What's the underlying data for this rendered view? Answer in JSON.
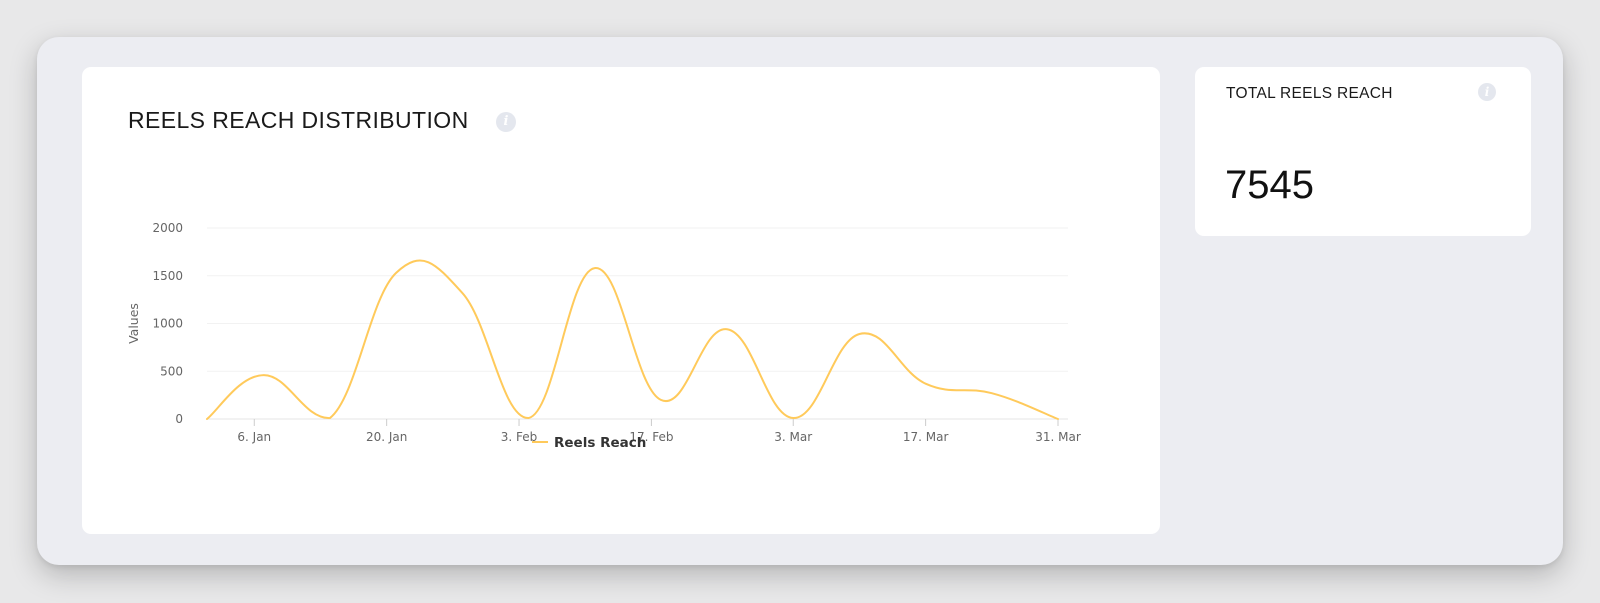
{
  "chart_card": {
    "title": "REELS REACH DISTRIBUTION",
    "info_icon": "info-icon"
  },
  "total_card": {
    "label": "TOTAL REELS REACH",
    "value": "7545",
    "info_icon": "info-icon"
  },
  "chart_data": {
    "type": "line",
    "title": "REELS REACH DISTRIBUTION",
    "xlabel": "",
    "ylabel": "Values",
    "ylim": [
      0,
      2000
    ],
    "yticks": [
      0,
      500,
      1000,
      1500,
      2000
    ],
    "xticks": [
      "6. Jan",
      "20. Jan",
      "3. Feb",
      "17. Feb",
      "3. Mar",
      "17. Mar",
      "31. Mar"
    ],
    "xlim": [
      "2024-01-01",
      "2024-03-31"
    ],
    "grid": true,
    "legend_position": "bottom",
    "line_color": "#ffca5b",
    "series": [
      {
        "name": "Reels Reach",
        "x": [
          "2024-01-01",
          "2024-01-07",
          "2024-01-14",
          "2024-01-21",
          "2024-01-28",
          "2024-02-04",
          "2024-02-11",
          "2024-02-18",
          "2024-02-25",
          "2024-03-03",
          "2024-03-10",
          "2024-03-17",
          "2024-03-24",
          "2024-03-31"
        ],
        "values": [
          0,
          460,
          10,
          1530,
          1320,
          10,
          1580,
          200,
          940,
          10,
          890,
          370,
          270,
          0
        ]
      }
    ]
  }
}
